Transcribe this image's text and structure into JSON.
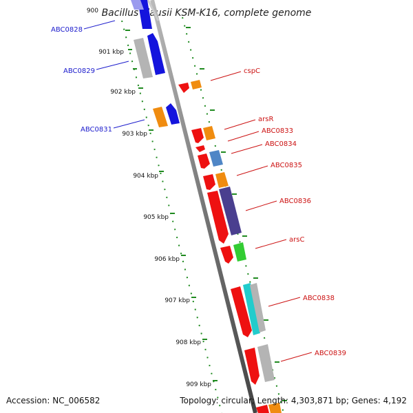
{
  "title": "Bacillus clausii KSM-K16, complete genome",
  "accession": "Accession: NC_006582",
  "topology": "Topology: circular; Length: 4,303,871 bp; Genes: 4,192",
  "kbp_labels": [
    "900",
    "901 kbp",
    "902 kbp",
    "903 kbp",
    "904 kbp",
    "905 kbp",
    "906 kbp",
    "907 kbp",
    "908 kbp",
    "909 kbp"
  ],
  "left_labels": [
    "ABC0828",
    "ABC0829",
    "ABC0831"
  ],
  "right_labels": [
    "cspC",
    "arsR",
    "ABC0833",
    "ABC0834",
    "ABC0835",
    "ABC0836",
    "arsC",
    "ABC0838",
    "ABC0839"
  ],
  "colors": {
    "backbone": "#7a7a7a",
    "dash": "#1f8a1f",
    "left_label": "#1a1acc",
    "right_label": "#cc1111",
    "gene_red": "#ee1111",
    "gene_blue": "#1414dd",
    "gene_orange": "#f08c10",
    "gene_gray": "#b4b4b4",
    "gene_steel": "#4f86c6",
    "gene_navy": "#4a3f8f",
    "gene_green": "#33cc33",
    "gene_cyan": "#22cccc"
  }
}
